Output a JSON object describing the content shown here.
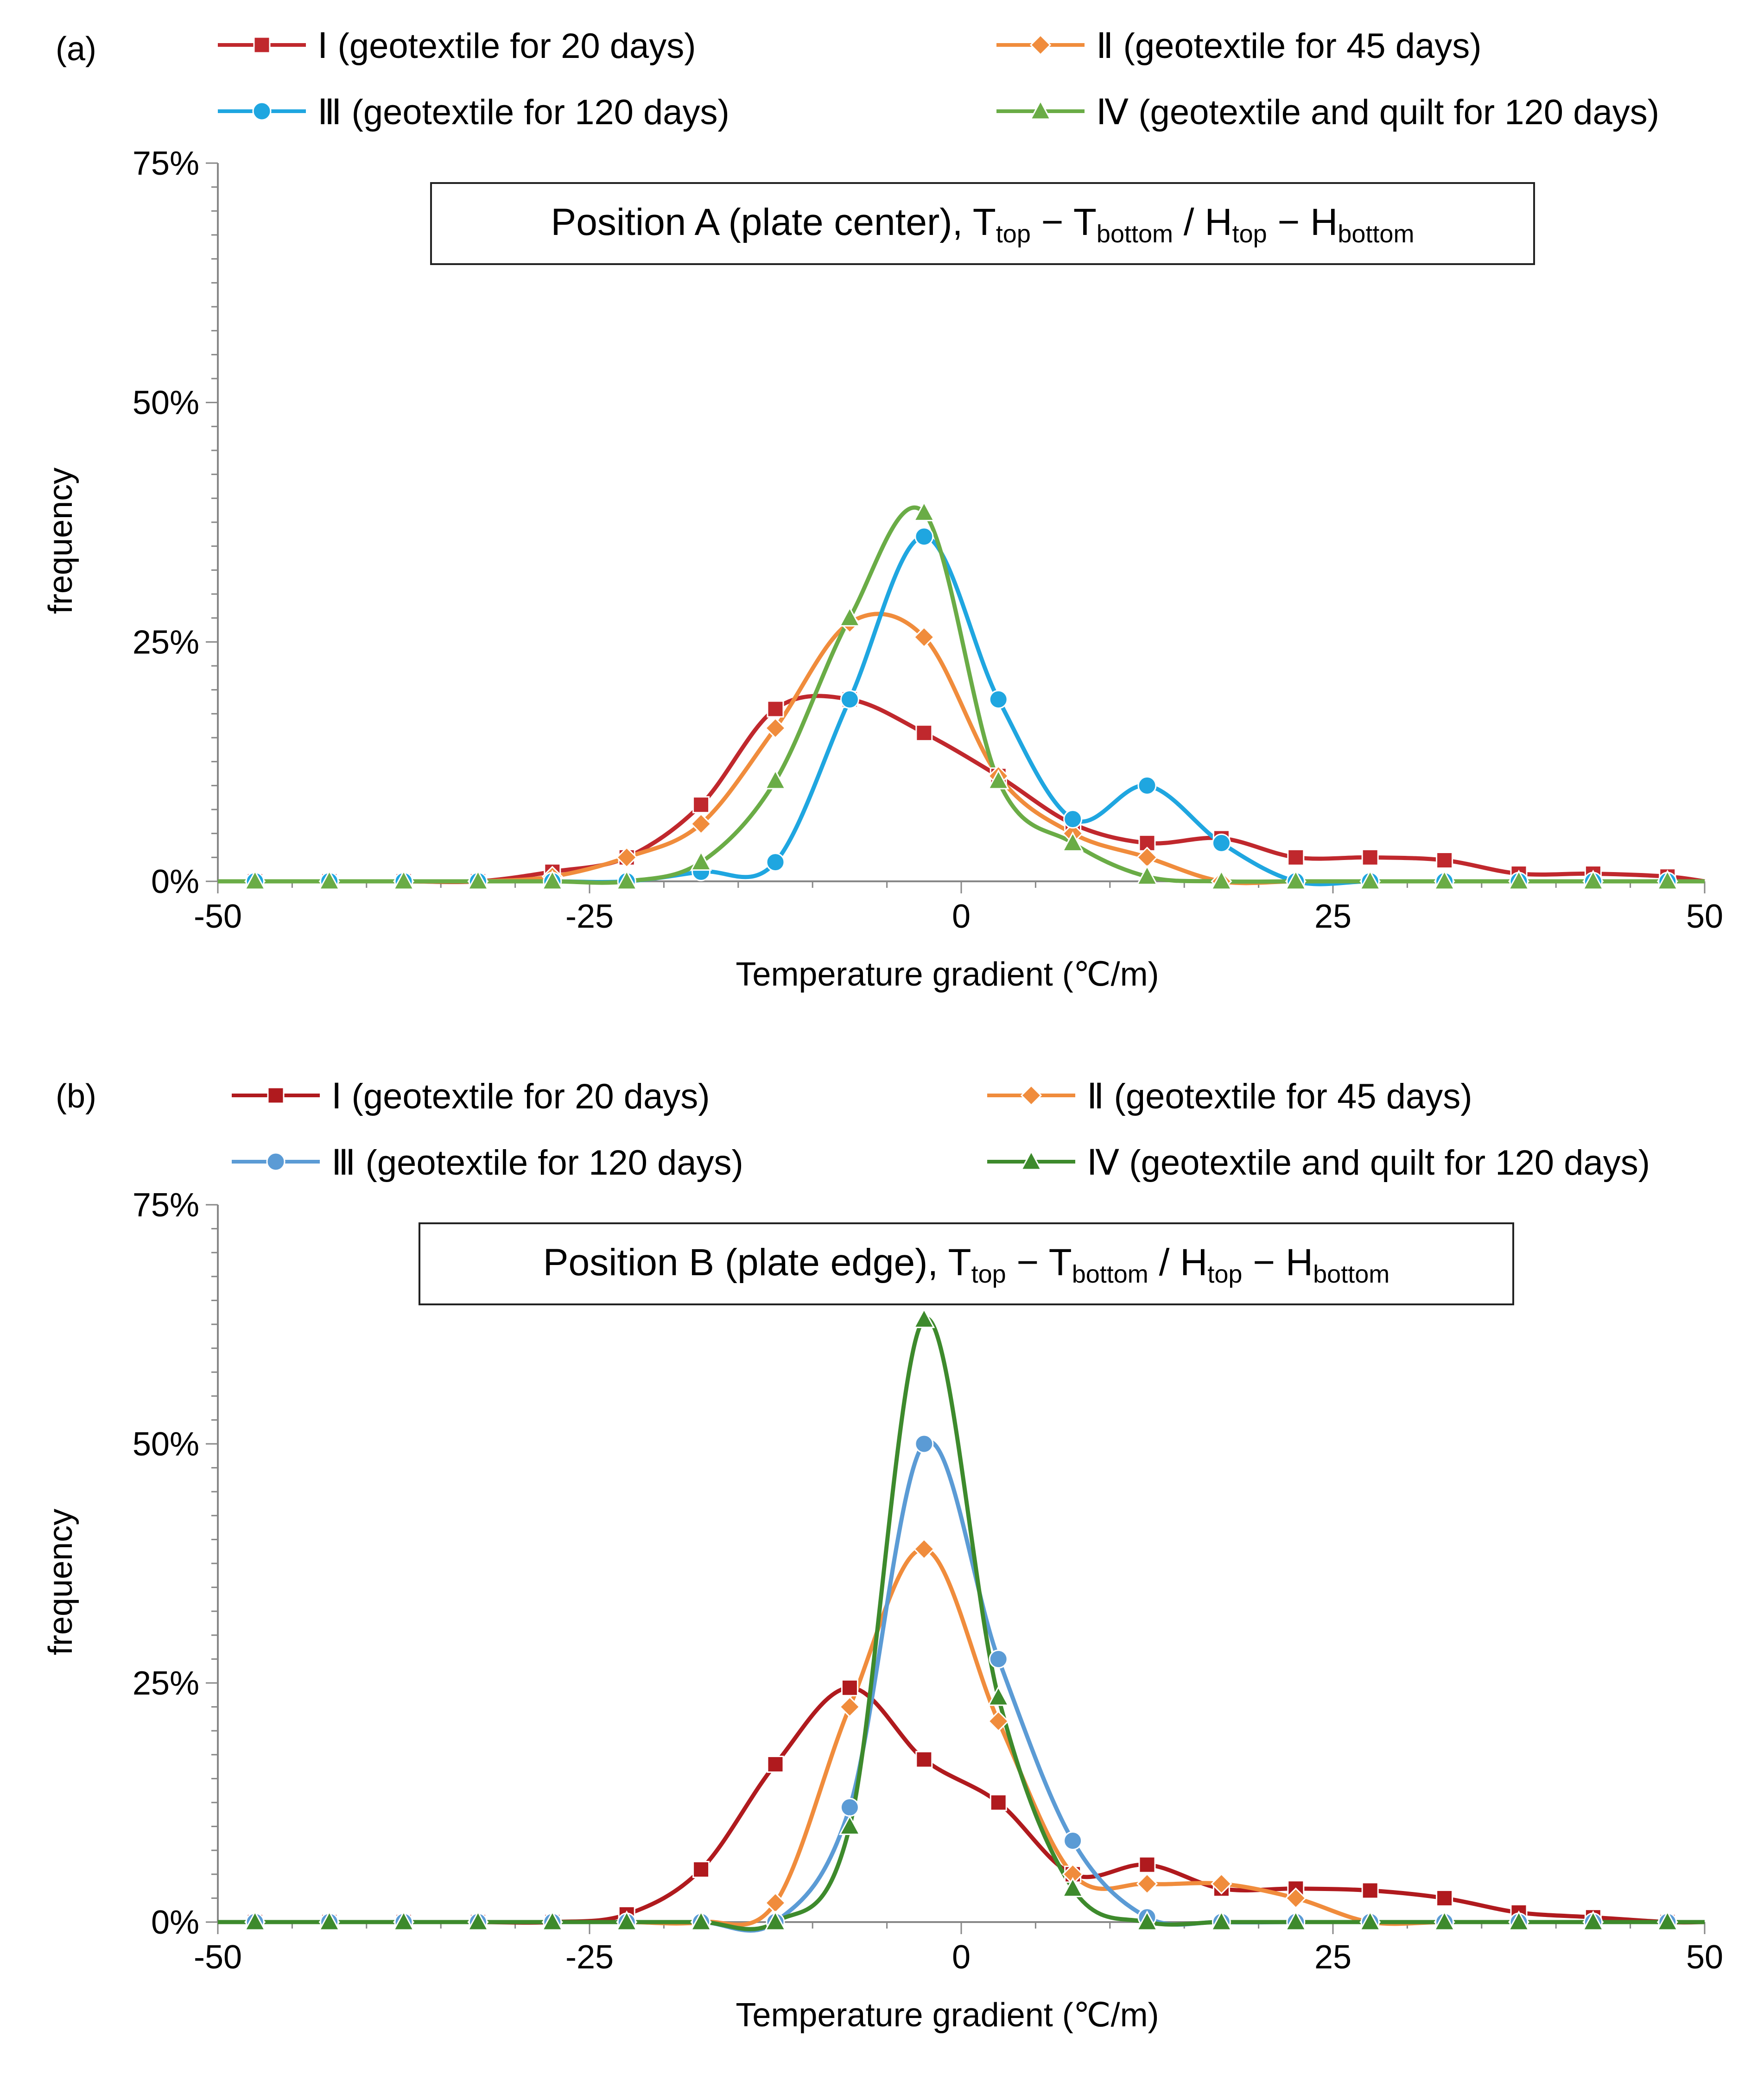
{
  "chart_data": [
    {
      "panel": "(a)",
      "type": "line",
      "title": {
        "prefix": "Position A (plate center), ",
        "parts": [
          "T",
          "top",
          " − T",
          "bottom",
          " / H",
          "top",
          " − H",
          "bottom"
        ]
      },
      "xlabel": "Temperature gradient  (℃/m)",
      "ylabel": "frequency",
      "xlim": [
        -50,
        50
      ],
      "ylim": [
        0,
        75
      ],
      "xticks": [
        -50,
        -25,
        0,
        25,
        50
      ],
      "yticks": [
        0,
        25,
        50,
        75
      ],
      "ytick_labels": [
        "0%",
        "25%",
        "50%",
        "75%"
      ],
      "x": [
        -47.5,
        -42.5,
        -37.5,
        -32.5,
        -27.5,
        -22.5,
        -17.5,
        -12.5,
        -7.5,
        -2.5,
        2.5,
        7.5,
        12.5,
        17.5,
        22.5,
        27.5,
        32.5,
        37.5,
        42.5,
        47.5
      ],
      "series": [
        {
          "name": "Ⅰ (geotextile for 20 days)",
          "color": "#c0282d",
          "marker": "square",
          "values": [
            0,
            0,
            0,
            0,
            1,
            2.5,
            8,
            18,
            19,
            15.5,
            11,
            6,
            4,
            4.5,
            2.5,
            2.5,
            2.2,
            0.8,
            0.8,
            0.5
          ]
        },
        {
          "name": "Ⅱ (geotextile for 45 days)",
          "color": "#f08c3c",
          "marker": "diamond",
          "values": [
            0,
            0,
            0,
            0,
            0.5,
            2.5,
            6,
            16,
            27,
            25.5,
            11,
            5,
            2.5,
            0,
            0,
            0,
            0,
            0,
            0,
            0
          ]
        },
        {
          "name": "Ⅲ (geotextile for 120 days)",
          "color": "#1fa6e0",
          "marker": "circle",
          "values": [
            0,
            0,
            0,
            0,
            0,
            0,
            1,
            2,
            19,
            36,
            19,
            6.5,
            10,
            4,
            0,
            0,
            0,
            0,
            0,
            0
          ]
        },
        {
          "name": "Ⅳ (geotextile and quilt for 120 days)",
          "color": "#6aac46",
          "marker": "triangle",
          "values": [
            0,
            0,
            0,
            0,
            0,
            0,
            2,
            10.5,
            27.5,
            38.5,
            10.5,
            4,
            0.5,
            0,
            0,
            0,
            0,
            0,
            0,
            0
          ]
        }
      ]
    },
    {
      "panel": "(b)",
      "type": "line",
      "title": {
        "prefix": "Position B (plate edge), ",
        "parts": [
          "T",
          "top",
          " − T",
          "bottom",
          " / H",
          "top",
          " − H",
          "bottom"
        ]
      },
      "xlabel": "Temperature gradient  (℃/m)",
      "ylabel": "frequency",
      "xlim": [
        -50,
        50
      ],
      "ylim": [
        0,
        75
      ],
      "xticks": [
        -50,
        -25,
        0,
        25,
        50
      ],
      "yticks": [
        0,
        25,
        50,
        75
      ],
      "ytick_labels": [
        "0%",
        "25%",
        "50%",
        "75%"
      ],
      "x": [
        -47.5,
        -42.5,
        -37.5,
        -32.5,
        -27.5,
        -22.5,
        -17.5,
        -12.5,
        -7.5,
        -2.5,
        2.5,
        7.5,
        12.5,
        17.5,
        22.5,
        27.5,
        32.5,
        37.5,
        42.5,
        47.5
      ],
      "series": [
        {
          "name": "Ⅰ (geotextile for 20 days)",
          "color": "#b01a1e",
          "marker": "square",
          "values": [
            0,
            0,
            0,
            0,
            0,
            0.8,
            5.5,
            16.5,
            24.5,
            17,
            12.5,
            5,
            6,
            3.5,
            3.5,
            3.3,
            2.5,
            1,
            0.5,
            0
          ]
        },
        {
          "name": "Ⅱ (geotextile for 45 days)",
          "color": "#f08c3c",
          "marker": "diamond",
          "values": [
            0,
            0,
            0,
            0,
            0,
            0,
            0,
            2,
            22.5,
            39,
            21,
            5,
            4,
            4,
            2.5,
            0,
            0,
            0,
            0,
            0
          ]
        },
        {
          "name": "Ⅲ (geotextile for 120 days)",
          "color": "#5b9bd5",
          "marker": "circle",
          "values": [
            0,
            0,
            0,
            0,
            0,
            0,
            0,
            0,
            12,
            50,
            27.5,
            8.5,
            0.5,
            0,
            0,
            0,
            0,
            0,
            0,
            0
          ]
        },
        {
          "name": "Ⅳ (geotextile and quilt for 120 days)",
          "color": "#3d8a2c",
          "marker": "triangle",
          "values": [
            0,
            0,
            0,
            0,
            0,
            0,
            0,
            0,
            10,
            63,
            23.5,
            3.5,
            0,
            0,
            0,
            0,
            0,
            0,
            0,
            0
          ]
        }
      ]
    }
  ]
}
